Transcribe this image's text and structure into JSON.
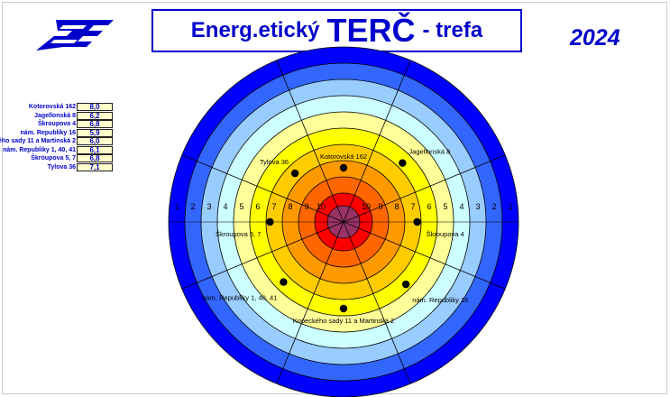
{
  "header": {
    "title_pre": "Energ.etický",
    "title_big": "TERČ",
    "title_post": "- trefa",
    "year": "2024"
  },
  "logo": {
    "icon": "energy-logo-icon",
    "color": "#0000cc"
  },
  "chart_data": {
    "type": "radar-target",
    "ring_scores": [
      1,
      2,
      3,
      4,
      5,
      6,
      7,
      8,
      9,
      10
    ],
    "ring_colors": [
      "#0000ff",
      "#3366ff",
      "#99ccff",
      "#ccffff",
      "#ffff99",
      "#ffff00",
      "#ffcc00",
      "#ff9900",
      "#ff6600",
      "#ff0000",
      "#993366"
    ],
    "sectors": 8,
    "points": [
      {
        "name": "Kotorovská 162",
        "display": "8,0",
        "value": 8.0
      },
      {
        "name": "Jagellonská 8",
        "display": "6,2",
        "value": 6.2
      },
      {
        "name": "Škroupova 4",
        "display": "6,8",
        "value": 6.8
      },
      {
        "name": "nám. Republiky 16",
        "display": "5,9",
        "value": 5.9
      },
      {
        "name": "Kopeckého sady 11 a Martinská 2",
        "display": "6,0",
        "value": 6.0
      },
      {
        "name": "nám. Republiky 1, 40, 41",
        "display": "6,1",
        "value": 6.1
      },
      {
        "name": "Škroupova 5, 7",
        "display": "6,8",
        "value": 6.8
      },
      {
        "name": "Tylova 36",
        "display": "7,1",
        "value": 7.1
      }
    ]
  }
}
